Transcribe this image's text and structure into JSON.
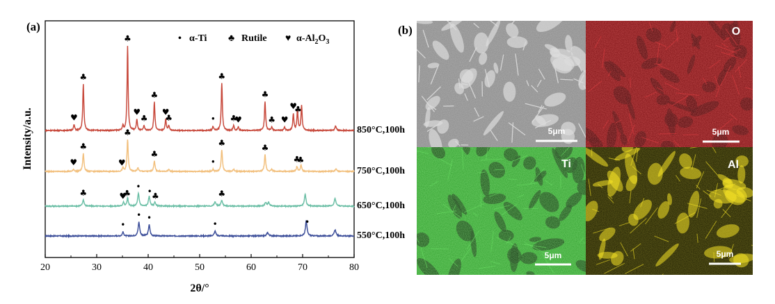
{
  "panel_a_label": "(a)",
  "panel_b_label": "(b)",
  "chart_data": {
    "type": "line",
    "xlabel": "2θ/°",
    "ylabel": "Intensity/a.u.",
    "xlim": [
      20,
      80
    ],
    "xticks": [
      "20",
      "30",
      "40",
      "50",
      "60",
      "70",
      "80"
    ],
    "grid": false,
    "legend_position": "top-right",
    "legend": [
      {
        "marker": "•",
        "label": "α-Ti"
      },
      {
        "marker": "♣",
        "label": "Rutile"
      },
      {
        "marker": "♥",
        "label_main": "α-Al",
        "sub1": "2",
        "mid": "O",
        "sub2": "3"
      }
    ],
    "series": [
      {
        "name": "550°C,100h",
        "color": "#3d4f9a",
        "peaks": [
          [
            35.1,
            6,
            0.15
          ],
          [
            38.2,
            20,
            0.18
          ],
          [
            40.2,
            16,
            0.18
          ],
          [
            53.0,
            7,
            0.2
          ],
          [
            63.2,
            5,
            0.2
          ],
          [
            70.7,
            22,
            0.18
          ],
          [
            76.3,
            9,
            0.2
          ]
        ],
        "markers": [
          [
            35.1,
            "•"
          ],
          [
            38.2,
            "•"
          ],
          [
            40.2,
            "•"
          ],
          [
            53.0,
            "•"
          ],
          [
            70.9,
            "•"
          ]
        ]
      },
      {
        "name": "650°C,100h",
        "color": "#6cbfa6",
        "peaks": [
          [
            27.4,
            9,
            0.18
          ],
          [
            35.2,
            6,
            0.15
          ],
          [
            36.0,
            12,
            0.15
          ],
          [
            38.1,
            18,
            0.18
          ],
          [
            40.2,
            14,
            0.18
          ],
          [
            41.3,
            6,
            0.15
          ],
          [
            53.0,
            6,
            0.2
          ],
          [
            54.3,
            8,
            0.2
          ],
          [
            62.8,
            5,
            0.2
          ],
          [
            63.4,
            5,
            0.2
          ],
          [
            70.5,
            17,
            0.18
          ],
          [
            76.3,
            11,
            0.2
          ]
        ],
        "markers": [
          [
            27.4,
            "♣"
          ],
          [
            35.1,
            "♥"
          ],
          [
            35.9,
            "♣"
          ],
          [
            38.1,
            "•"
          ],
          [
            40.3,
            "•"
          ],
          [
            41.4,
            "♣"
          ],
          [
            54.3,
            "♣"
          ]
        ]
      },
      {
        "name": "750°C,100h",
        "color": "#f2c07e",
        "peaks": [
          [
            25.5,
            3,
            0.15
          ],
          [
            27.4,
            26,
            0.15
          ],
          [
            35.1,
            5,
            0.15
          ],
          [
            36.0,
            46,
            0.14
          ],
          [
            38.0,
            5,
            0.15
          ],
          [
            41.2,
            15,
            0.15
          ],
          [
            44.0,
            3,
            0.15
          ],
          [
            52.6,
            3,
            0.15
          ],
          [
            54.3,
            31,
            0.15
          ],
          [
            56.6,
            3,
            0.15
          ],
          [
            62.7,
            24,
            0.15
          ],
          [
            64.0,
            3,
            0.15
          ],
          [
            68.9,
            7,
            0.15
          ],
          [
            69.7,
            9,
            0.15
          ],
          [
            76.5,
            4,
            0.18
          ]
        ],
        "markers": [
          [
            25.5,
            "♥"
          ],
          [
            27.4,
            "♣"
          ],
          [
            34.9,
            "♥"
          ],
          [
            36.0,
            "♣"
          ],
          [
            41.2,
            "♣"
          ],
          [
            52.6,
            "•"
          ],
          [
            54.3,
            "♣"
          ],
          [
            62.7,
            "♣"
          ],
          [
            68.9,
            "♣"
          ],
          [
            69.6,
            "♣"
          ]
        ]
      },
      {
        "name": "850°C,100h",
        "color": "#c84a3d",
        "peaks": [
          [
            25.6,
            8,
            0.14
          ],
          [
            27.4,
            67,
            0.13
          ],
          [
            35.1,
            7,
            0.13
          ],
          [
            36.0,
            122,
            0.12
          ],
          [
            37.8,
            16,
            0.13
          ],
          [
            39.2,
            7,
            0.13
          ],
          [
            41.2,
            41,
            0.13
          ],
          [
            43.4,
            16,
            0.13
          ],
          [
            44.0,
            7,
            0.13
          ],
          [
            52.6,
            6,
            0.13
          ],
          [
            54.3,
            68,
            0.13
          ],
          [
            56.6,
            7,
            0.13
          ],
          [
            57.5,
            5,
            0.13
          ],
          [
            62.7,
            42,
            0.13
          ],
          [
            64.0,
            5,
            0.13
          ],
          [
            66.5,
            5,
            0.13
          ],
          [
            68.2,
            24,
            0.13
          ],
          [
            69.0,
            30,
            0.13
          ],
          [
            69.8,
            36,
            0.13
          ],
          [
            76.4,
            7,
            0.15
          ]
        ],
        "markers": [
          [
            25.6,
            "♥"
          ],
          [
            27.4,
            "♣"
          ],
          [
            36.0,
            "♣"
          ],
          [
            37.8,
            "♥"
          ],
          [
            39.2,
            "♣"
          ],
          [
            41.2,
            "♣"
          ],
          [
            43.4,
            "♥"
          ],
          [
            44.0,
            "♣"
          ],
          [
            52.6,
            "•"
          ],
          [
            54.3,
            "♣"
          ],
          [
            56.6,
            "♣"
          ],
          [
            57.5,
            "♥"
          ],
          [
            62.7,
            "♣"
          ],
          [
            64.0,
            "♣"
          ],
          [
            66.5,
            "♥"
          ],
          [
            68.2,
            "♥"
          ],
          [
            69.1,
            "♣"
          ]
        ]
      }
    ]
  },
  "micrographs": [
    {
      "id": "sem",
      "label": "",
      "scale_bar": "5μm",
      "base": "#8a8a8a",
      "accent": "#d8d8d8",
      "dark": "#5c5c5c"
    },
    {
      "id": "O",
      "label": "O",
      "scale_bar": "5μm",
      "base": "#7a0f12",
      "accent": "#d4262b",
      "dark": "#3b0507"
    },
    {
      "id": "Ti",
      "label": "Ti",
      "scale_bar": "5μm",
      "base": "#2f9e2c",
      "accent": "#4fd24a",
      "dark": "#0d2a0c"
    },
    {
      "id": "Al",
      "label": "Al",
      "scale_bar": "5μm",
      "base": "#1a1a00",
      "accent": "#f5e11a",
      "dark": "#050500"
    }
  ]
}
